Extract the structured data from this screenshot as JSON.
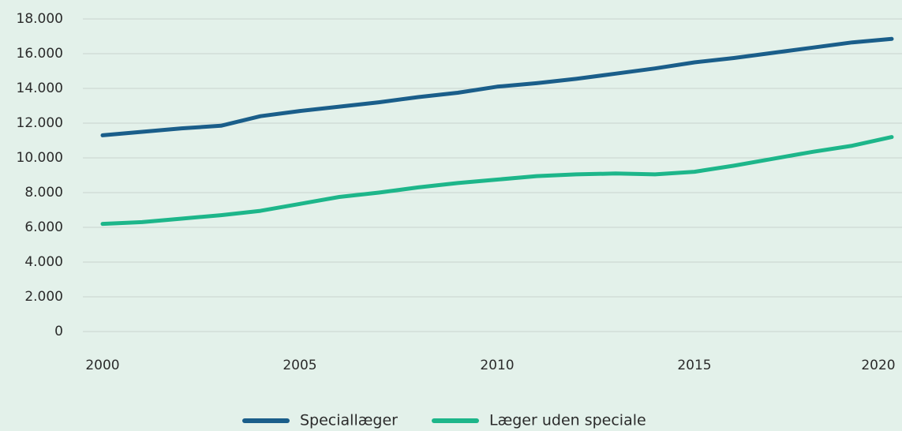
{
  "chart_data": {
    "type": "line",
    "x": [
      2000,
      2001,
      2002,
      2003,
      2004,
      2005,
      2006,
      2007,
      2008,
      2009,
      2010,
      2011,
      2012,
      2013,
      2014,
      2015,
      2016,
      2017,
      2018,
      2019,
      2020
    ],
    "series": [
      {
        "name": "Speciallæger",
        "color": "#1a5e8a",
        "values": [
          11300,
          11500,
          11700,
          11850,
          12400,
          12700,
          12950,
          13200,
          13500,
          13750,
          14100,
          14300,
          14550,
          14850,
          15150,
          15500,
          15750,
          16050,
          16350,
          16650,
          16850
        ]
      },
      {
        "name": "Læger uden speciale",
        "color": "#1db68a",
        "values": [
          6200,
          6300,
          6500,
          6700,
          6950,
          7350,
          7750,
          8000,
          8300,
          8550,
          8750,
          8950,
          9050,
          9100,
          9050,
          9200,
          9550,
          9950,
          10350,
          10700,
          11200
        ]
      }
    ],
    "xlim": [
      2000,
      2020
    ],
    "xticks": [
      2000,
      2005,
      2010,
      2015,
      2020
    ],
    "ylim": [
      0,
      18000
    ],
    "yticks": [
      {
        "value": 0,
        "label": "0"
      },
      {
        "value": 2000,
        "label": "2.000"
      },
      {
        "value": 4000,
        "label": "4.000"
      },
      {
        "value": 6000,
        "label": "6.000"
      },
      {
        "value": 8000,
        "label": "8.000"
      },
      {
        "value": 10000,
        "label": "10.000"
      },
      {
        "value": 12000,
        "label": "12.000"
      },
      {
        "value": 14000,
        "label": "14.000"
      },
      {
        "value": 16000,
        "label": "16.000"
      },
      {
        "value": 18000,
        "label": "18.000"
      }
    ],
    "grid": true,
    "legend": "bottom"
  }
}
